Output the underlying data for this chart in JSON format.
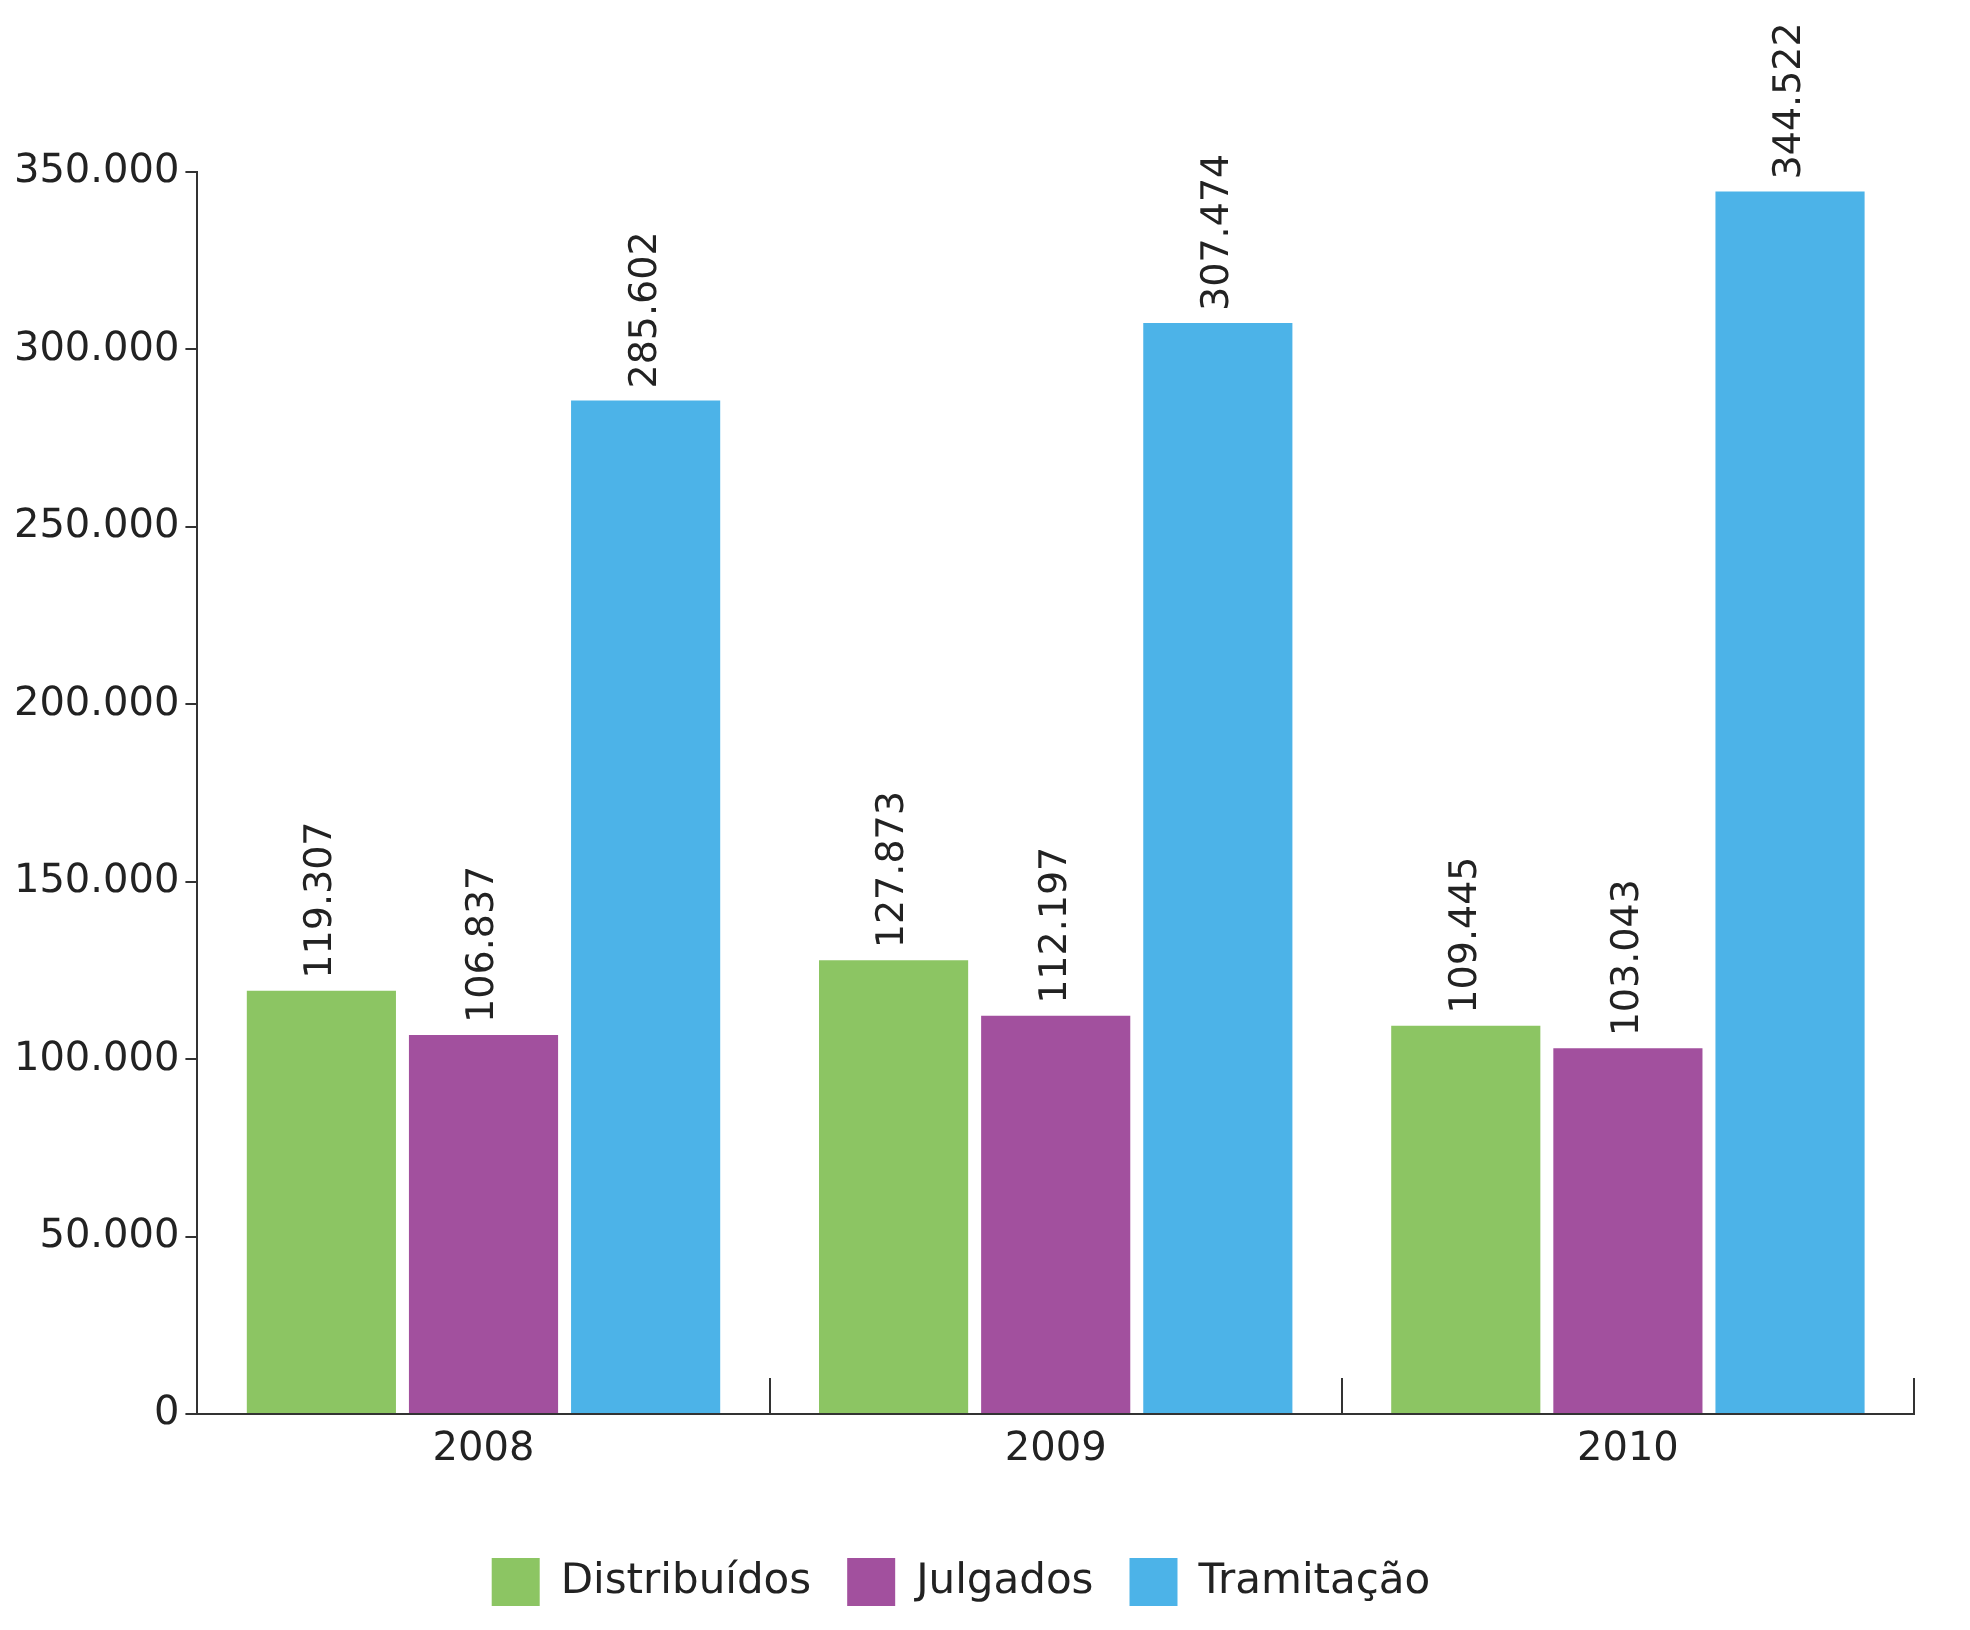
{
  "chart_data": {
    "type": "bar",
    "categories": [
      "2008",
      "2009",
      "2010"
    ],
    "series": [
      {
        "name": "Distribuídos",
        "color": "#8cc563",
        "values": [
          119307,
          127873,
          109445
        ],
        "value_labels": [
          "119.307",
          "127.873",
          "109.445"
        ]
      },
      {
        "name": "Julgados",
        "color": "#a2509e",
        "values": [
          106837,
          112197,
          103043
        ],
        "value_labels": [
          "106.837",
          "112.197",
          "103.043"
        ]
      },
      {
        "name": "Tramitação",
        "color": "#4cb3e8",
        "values": [
          285602,
          307474,
          344522
        ],
        "value_labels": [
          "285.602",
          "307.474",
          "344.522"
        ]
      }
    ],
    "ylim": [
      0,
      350000
    ],
    "yticks": [
      {
        "value": 0,
        "label": "0"
      },
      {
        "value": 50000,
        "label": "50.000"
      },
      {
        "value": 100000,
        "label": "100.000"
      },
      {
        "value": 150000,
        "label": "150.000"
      },
      {
        "value": 200000,
        "label": "200.000"
      },
      {
        "value": 250000,
        "label": "250.000"
      },
      {
        "value": 300000,
        "label": "300.000"
      },
      {
        "value": 350000,
        "label": "350.000"
      }
    ],
    "grid": false,
    "legend": "bottom"
  }
}
